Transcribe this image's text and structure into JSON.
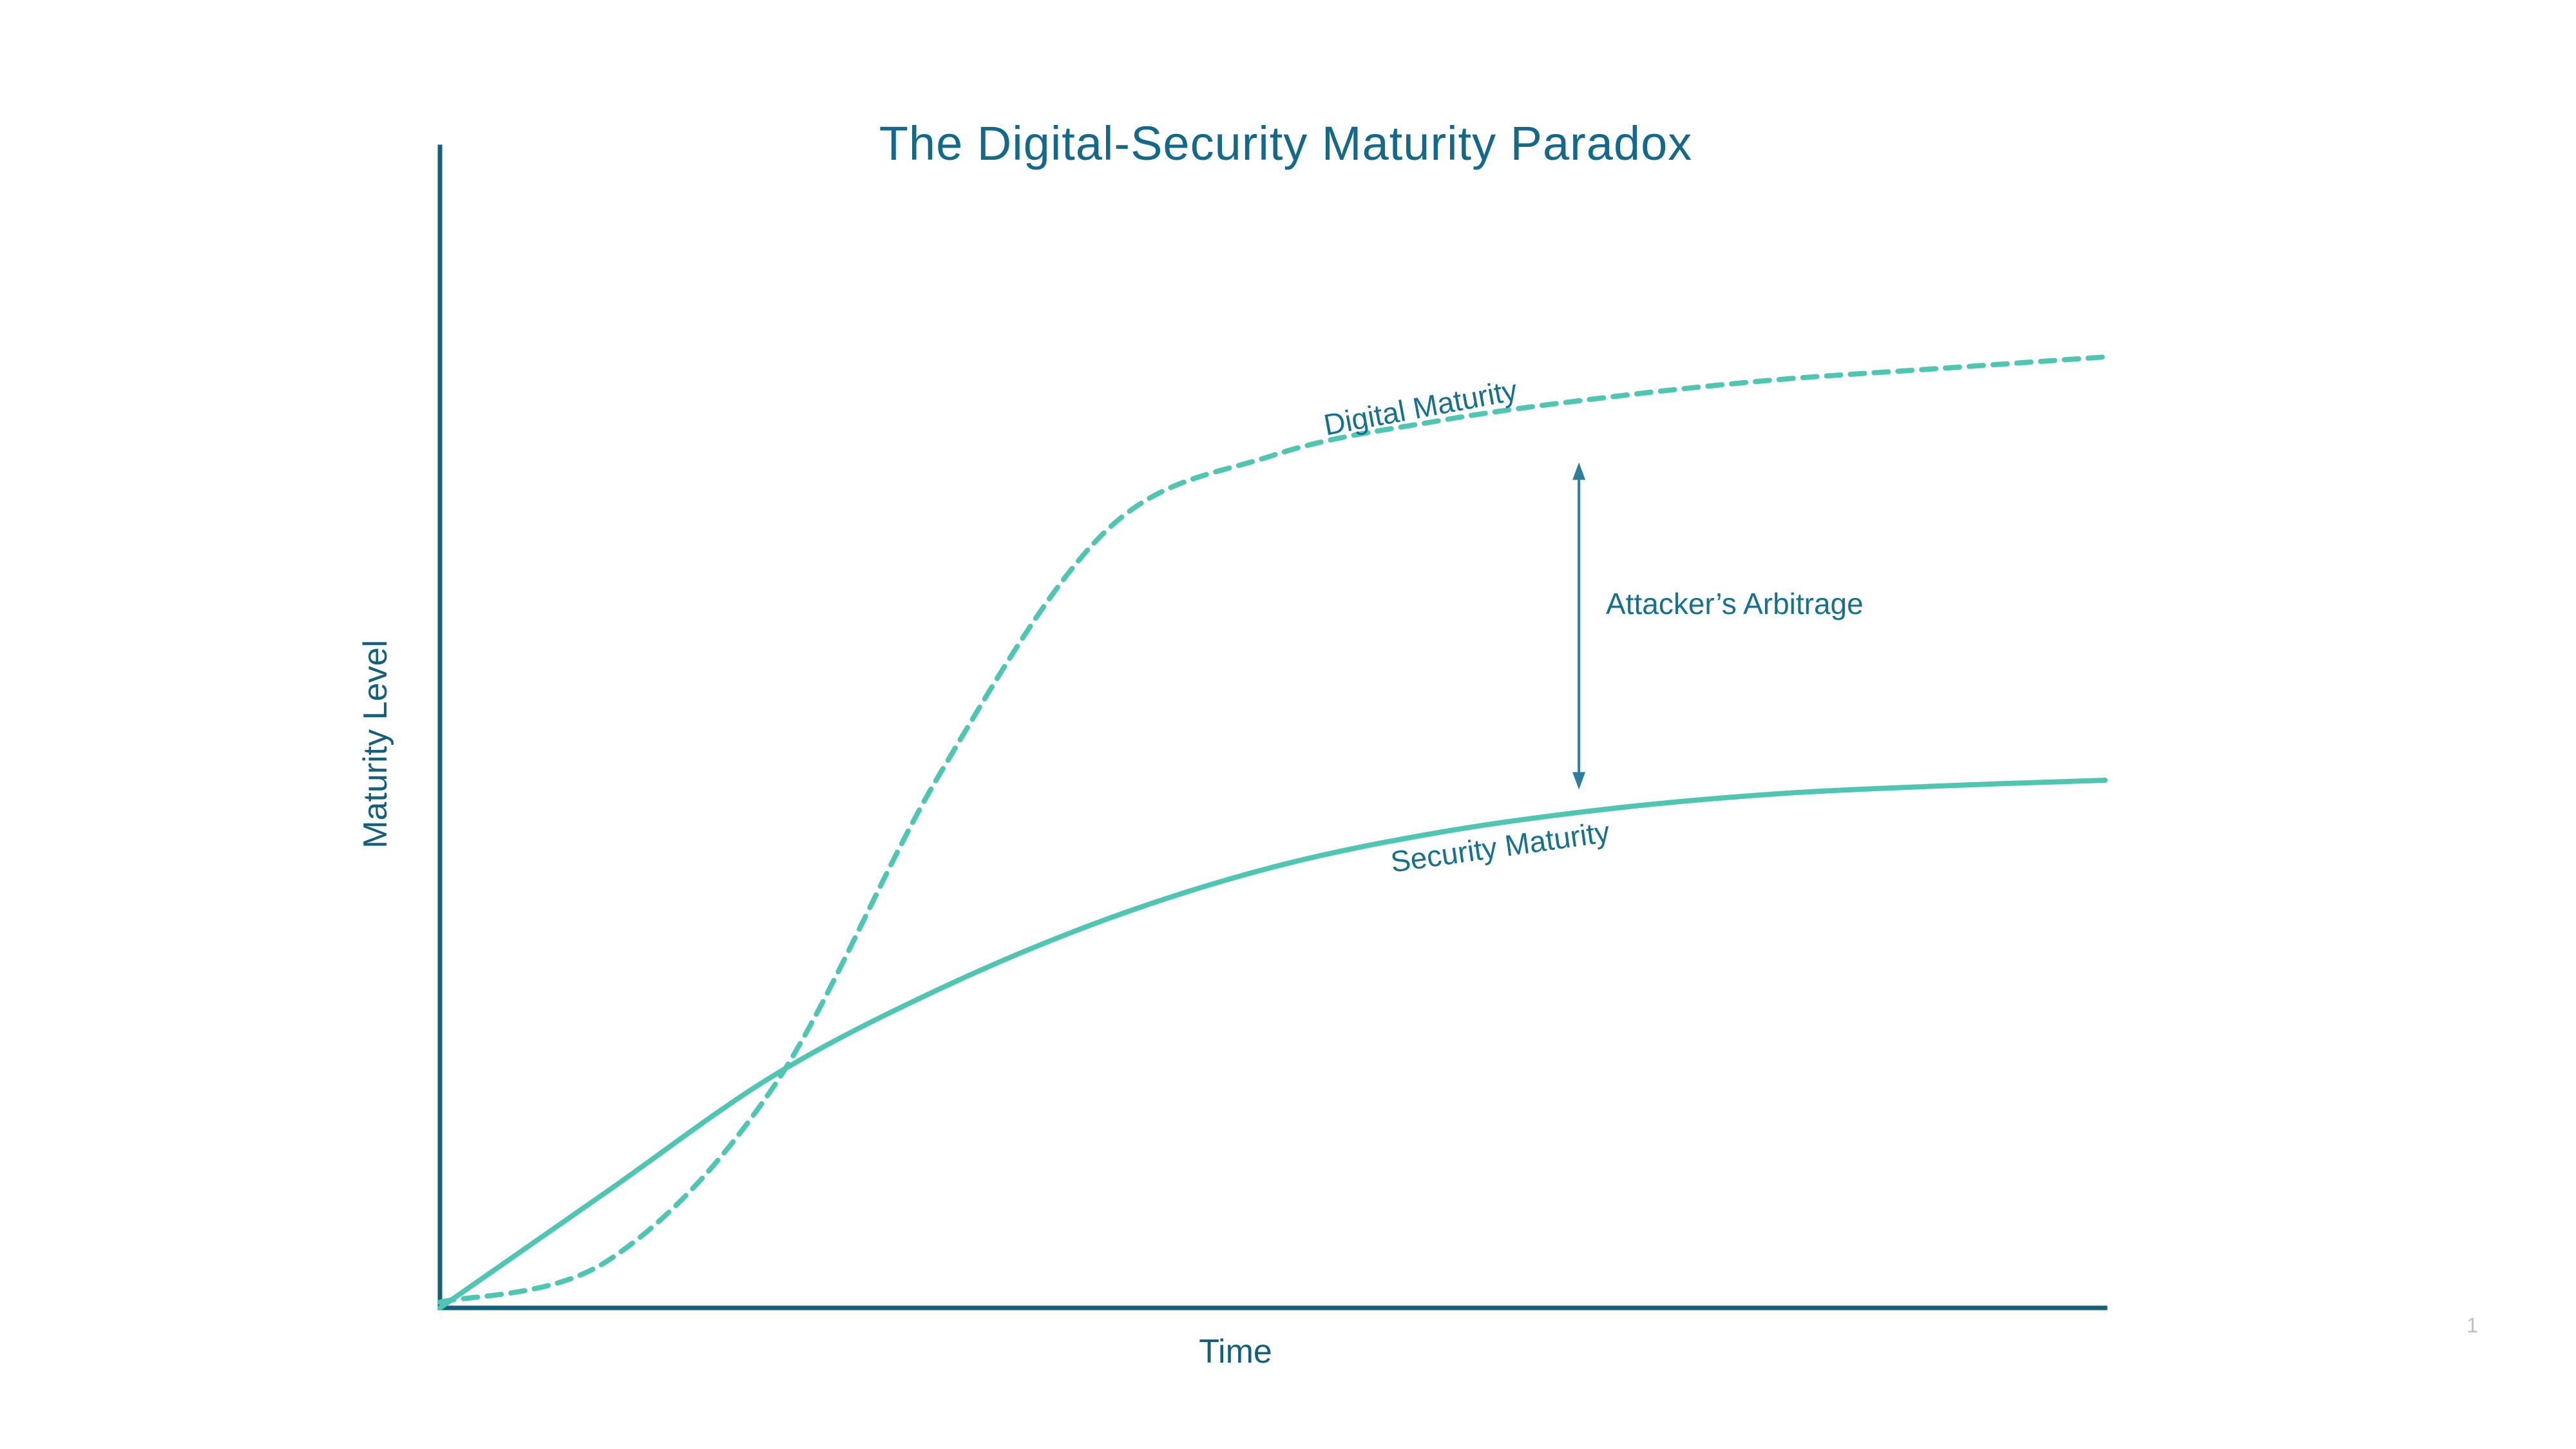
{
  "labels": {
    "title": "The Digital-Security Maturity Paradox",
    "x_axis": "Time",
    "y_axis": "Maturity Level",
    "digital_curve": "Digital Maturity",
    "security_curve": "Security Maturity",
    "arbitrage": "Attacker’s Arbitrage",
    "page_number": "1"
  },
  "colors": {
    "dark_teal_axes": "#155f7b",
    "title_teal": "#14688a",
    "curve_turquoise": "#4fc6b2",
    "arrow_teal": "#2e7d9c",
    "page_number_gray": "#bfbfbf",
    "background": "#ffffff"
  },
  "chart_data": {
    "type": "line",
    "title": "The Digital-Security Maturity Paradox",
    "xlabel": "Time",
    "ylabel": "Maturity Level",
    "xlim": [
      0,
      10
    ],
    "ylim": [
      0,
      10
    ],
    "grid": false,
    "ticks": "none",
    "legend_position": "inline-curve-labels",
    "x": [
      0,
      1,
      2,
      3,
      4,
      5,
      6,
      7,
      8,
      9,
      10
    ],
    "series": [
      {
        "name": "Digital Maturity",
        "style": "dashed",
        "shape": "sigmoid",
        "color": "#4fc6b2",
        "x": [
          0,
          1,
          2,
          3,
          4,
          5,
          6,
          7,
          8,
          9,
          10
        ],
        "values": [
          0.05,
          0.4,
          1.9,
          4.6,
          6.7,
          7.35,
          7.65,
          7.85,
          8.0,
          8.1,
          8.2
        ]
      },
      {
        "name": "Security Maturity",
        "style": "solid",
        "shape": "logarithmic",
        "color": "#4fc6b2",
        "x": [
          0,
          1,
          2,
          3,
          4,
          5,
          6,
          7,
          8,
          9,
          10
        ],
        "values": [
          0.0,
          1.0,
          2.0,
          2.75,
          3.35,
          3.8,
          4.1,
          4.3,
          4.43,
          4.5,
          4.55
        ]
      }
    ],
    "annotations": [
      {
        "label": "Attacker’s Arbitrage",
        "type": "double-headed-vertical-arrow",
        "x": 6.84,
        "y_top": 7.29,
        "y_bottom": 4.47
      }
    ]
  }
}
